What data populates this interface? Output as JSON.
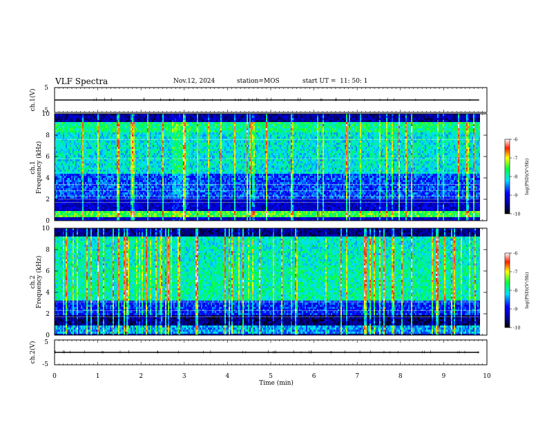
{
  "header": {
    "title": "VLF Spectra",
    "date": "Nov.12, 2024",
    "station": "station=MOS",
    "start": "start UT =  11: 50: 1"
  },
  "chart_data": {
    "type": "heatmap",
    "xlabel": "Time (min)",
    "xlim": [
      0,
      10
    ],
    "x_ticks": [
      "0",
      "1",
      "2",
      "3",
      "4",
      "5",
      "6",
      "7",
      "8",
      "9",
      "10"
    ],
    "data_end_min": 9.82,
    "panels": [
      {
        "id": "ch1-voltage",
        "type": "line",
        "ylabel": "ch.1(V)",
        "ylim": [
          -5,
          5
        ],
        "y_ticks": [
          "5",
          "-5"
        ],
        "baseline": 0
      },
      {
        "id": "ch1-spectrogram",
        "type": "heatmap",
        "ylabel_top": "ch.1",
        "ylabel": "Frequency (kHz)",
        "ylim": [
          0,
          10
        ],
        "y_ticks": [
          "0",
          "2",
          "4",
          "6",
          "8",
          "10"
        ],
        "colorbar": {
          "label": "log(PSD)(V²/Hz)",
          "range": [
            -10,
            -6
          ],
          "ticks": [
            "-6",
            "-7",
            "-8",
            "-9",
            "-10"
          ]
        },
        "hlines_khz": [
          1.7,
          2.0,
          2.3,
          2.8,
          3.4,
          5.8,
          7.6
        ]
      },
      {
        "id": "ch2-spectrogram",
        "type": "heatmap",
        "ylabel_top": "ch.2",
        "ylabel": "Frequency (kHz)",
        "ylim": [
          0,
          10
        ],
        "y_ticks": [
          "0",
          "2",
          "4",
          "6",
          "8",
          "10"
        ],
        "colorbar": {
          "label": "log(PSD)(V²/Hz)",
          "range": [
            -10,
            -6
          ],
          "ticks": [
            "-6",
            "-7",
            "-8",
            "-9",
            "-10"
          ]
        },
        "hlines_khz": [
          1.7,
          2.3,
          3.1
        ]
      },
      {
        "id": "ch2-voltage",
        "type": "line",
        "ylabel": "ch.2(V)",
        "ylim": [
          -5,
          5
        ],
        "y_ticks": [
          "5",
          "-5"
        ],
        "baseline": 0
      }
    ]
  }
}
